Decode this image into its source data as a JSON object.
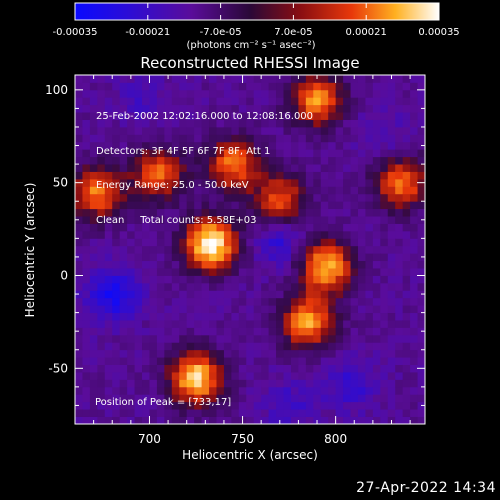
{
  "colorbar": {
    "ticks": [
      "-0.00035",
      "-0.00021",
      "-7.0e-05",
      "7.0e-05",
      "0.00021",
      "0.00035"
    ],
    "unit_label": "(photons cm⁻² s⁻¹ asec⁻²)"
  },
  "plot": {
    "title": "Reconstructed RHESSI Image",
    "xlabel": "Heliocentric X (arcsec)",
    "ylabel": "Heliocentric Y (arcsec)",
    "x_ticks": [
      "700",
      "750",
      "800"
    ],
    "y_ticks": [
      "100",
      "50",
      "0",
      "-50"
    ]
  },
  "annotations": {
    "time_range": "25-Feb-2002 12:02:16.000 to 12:08:16.000",
    "detectors": "Detectors: 3F 4F 5F 6F 7F 8F, Att 1",
    "energy": "Energy Range: 25.0 - 50.0 keV",
    "clean": "Clean     Total counts: 5.58E+03",
    "peak": "Position of Peak = [733,17]"
  },
  "footer": {
    "date": "27-Apr-2022 14:34"
  },
  "chart_data": {
    "type": "heatmap",
    "title": "Reconstructed RHESSI Image",
    "xlabel": "Heliocentric X (arcsec)",
    "ylabel": "Heliocentric Y (arcsec)",
    "xlim": [
      660,
      848
    ],
    "ylim": [
      -80,
      108
    ],
    "x_ticks": [
      700,
      750,
      800
    ],
    "y_ticks": [
      100,
      50,
      0,
      -50
    ],
    "colorbar_range": [
      -0.00035,
      0.00035
    ],
    "colorbar_ticks": [
      -0.00035,
      -0.00021,
      -7e-05,
      7e-05,
      0.00021,
      0.00035
    ],
    "peak_position": [
      733,
      17
    ],
    "bright_sources": [
      {
        "x": 733,
        "y": 17,
        "value": 0.00035
      },
      {
        "x": 725,
        "y": -55,
        "value": 0.0003
      },
      {
        "x": 795,
        "y": 5,
        "value": 0.00026
      },
      {
        "x": 785,
        "y": -25,
        "value": 0.00024
      },
      {
        "x": 745,
        "y": 60,
        "value": 0.0002
      },
      {
        "x": 790,
        "y": 95,
        "value": 0.00022
      },
      {
        "x": 835,
        "y": 50,
        "value": 0.0002
      },
      {
        "x": 672,
        "y": 45,
        "value": 0.0002
      },
      {
        "x": 705,
        "y": 55,
        "value": 0.00018
      },
      {
        "x": 770,
        "y": 40,
        "value": 0.00018
      }
    ],
    "dark_sources": [
      {
        "x": 680,
        "y": -10,
        "value": -0.0003
      },
      {
        "x": 770,
        "y": 20,
        "value": -0.00025
      },
      {
        "x": 808,
        "y": -58,
        "value": -0.00022
      },
      {
        "x": 775,
        "y": -70,
        "value": -0.0002
      },
      {
        "x": 695,
        "y": 95,
        "value": -0.00018
      },
      {
        "x": 825,
        "y": 75,
        "value": -0.00018
      }
    ]
  }
}
